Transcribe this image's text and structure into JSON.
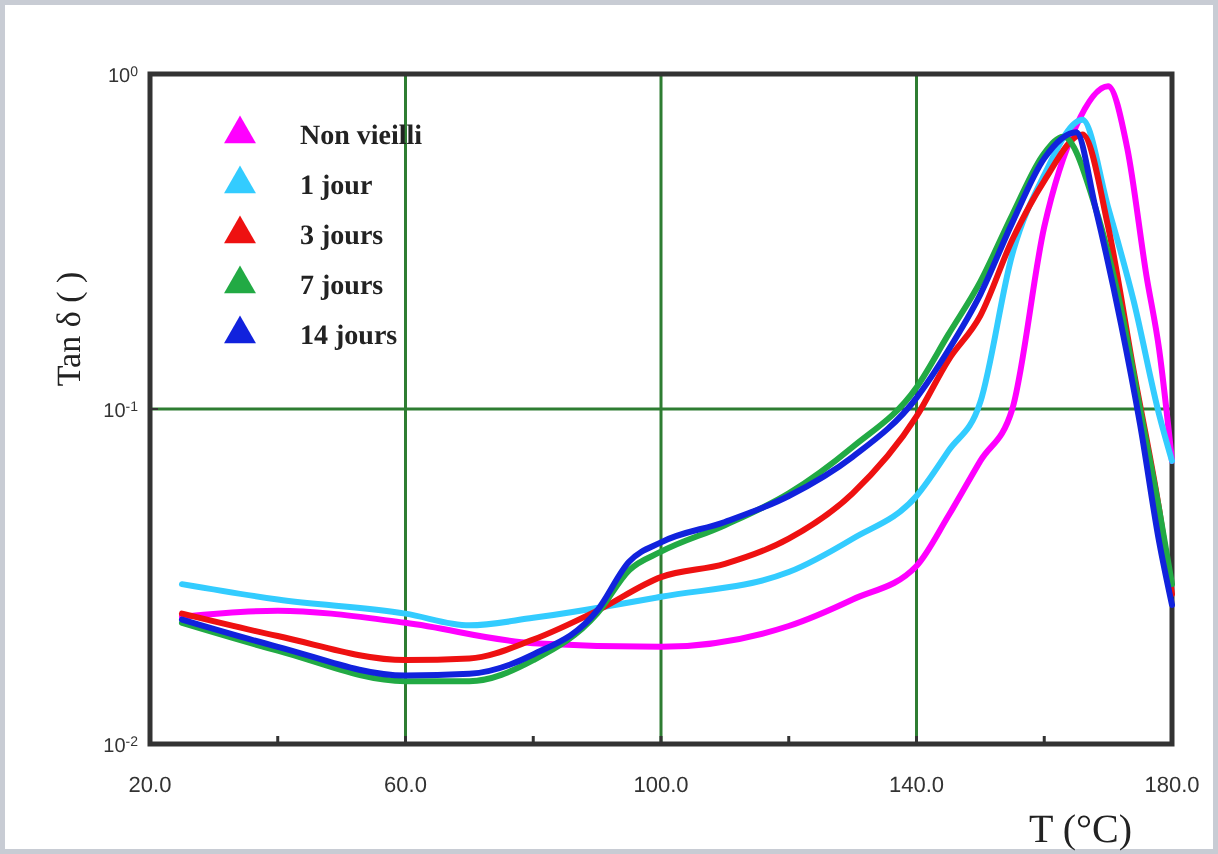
{
  "chart_data": {
    "type": "line",
    "xlabel": "T (°C)",
    "ylabel": "Tan δ ( )",
    "log": "y",
    "grid": true,
    "legend": "top left",
    "marker": "none",
    "line_style": "solid",
    "xlim": [
      20,
      180
    ],
    "xticks": [
      "20.0",
      {
        "value": 40,
        "label": null
      },
      {
        "value": 60,
        "label": "60.0"
      },
      {
        "value": 80,
        "label": null
      },
      {
        "value": 100,
        "label": "100.0"
      },
      {
        "value": 120,
        "label": null
      },
      {
        "value": 140,
        "label": "140.0"
      },
      {
        "value": 160,
        "label": null
      },
      {
        "value": 180,
        "label": "180.0"
      }
    ],
    "ylim": [
      0.01,
      1
    ],
    "yticks": [
      {
        "value": 0.01,
        "label": "10$^{-2}$"
      },
      {
        "value": 0.1,
        "label": "10$^{-1}$"
      },
      {
        "value": 1,
        "label": "10$^{0}$"
      }
    ],
    "series": [
      {
        "name": "Non vieilli",
        "color": "#ff00ff",
        "x": [
          25,
          40,
          60,
          80,
          100,
          120,
          130,
          140,
          145,
          150,
          155,
          160,
          165,
          170,
          173,
          176,
          178,
          180
        ],
        "values": [
          0.024,
          0.025,
          0.023,
          0.02,
          0.0195,
          0.0225,
          0.027,
          0.034,
          0.048,
          0.07,
          0.1,
          0.35,
          0.7,
          0.92,
          0.6,
          0.25,
          0.15,
          0.07
        ]
      },
      {
        "name": "1 jour",
        "color": "#33ccff",
        "x": [
          25,
          40,
          60,
          70,
          80,
          100,
          120,
          130,
          140,
          145,
          150,
          155,
          160,
          166,
          170,
          174,
          178,
          180
        ],
        "values": [
          0.03,
          0.027,
          0.0245,
          0.0226,
          0.0238,
          0.0275,
          0.0326,
          0.041,
          0.055,
          0.075,
          0.105,
          0.29,
          0.5,
          0.73,
          0.4,
          0.21,
          0.096,
          0.07
        ]
      },
      {
        "name": "3 jours",
        "color": "#ee1111",
        "x": [
          25,
          40,
          60,
          70,
          80,
          90,
          100,
          110,
          120,
          130,
          140,
          145,
          150,
          155,
          160,
          166,
          170,
          174,
          178,
          180
        ],
        "values": [
          0.0245,
          0.021,
          0.0178,
          0.018,
          0.0205,
          0.025,
          0.0315,
          0.0345,
          0.041,
          0.056,
          0.095,
          0.14,
          0.19,
          0.32,
          0.48,
          0.66,
          0.35,
          0.13,
          0.05,
          0.028
        ]
      },
      {
        "name": "7 jours",
        "color": "#22aa44",
        "x": [
          25,
          40,
          60,
          70,
          80,
          90,
          95,
          100,
          110,
          120,
          130,
          140,
          145,
          150,
          155,
          160,
          163,
          168,
          172,
          175,
          178,
          180
        ],
        "values": [
          0.023,
          0.019,
          0.0154,
          0.0154,
          0.0178,
          0.0245,
          0.033,
          0.0375,
          0.045,
          0.056,
          0.077,
          0.116,
          0.167,
          0.24,
          0.38,
          0.58,
          0.65,
          0.4,
          0.2,
          0.1,
          0.05,
          0.03
        ]
      },
      {
        "name": "14 jours",
        "color": "#1122dd",
        "x": [
          25,
          40,
          60,
          70,
          80,
          90,
          95,
          100,
          110,
          120,
          130,
          140,
          145,
          150,
          155,
          160,
          165,
          168,
          172,
          175,
          178,
          180
        ],
        "values": [
          0.0235,
          0.0195,
          0.016,
          0.0162,
          0.0185,
          0.025,
          0.035,
          0.04,
          0.046,
          0.055,
          0.072,
          0.108,
          0.15,
          0.22,
          0.36,
          0.56,
          0.67,
          0.4,
          0.18,
          0.09,
          0.04,
          0.026
        ]
      }
    ]
  }
}
